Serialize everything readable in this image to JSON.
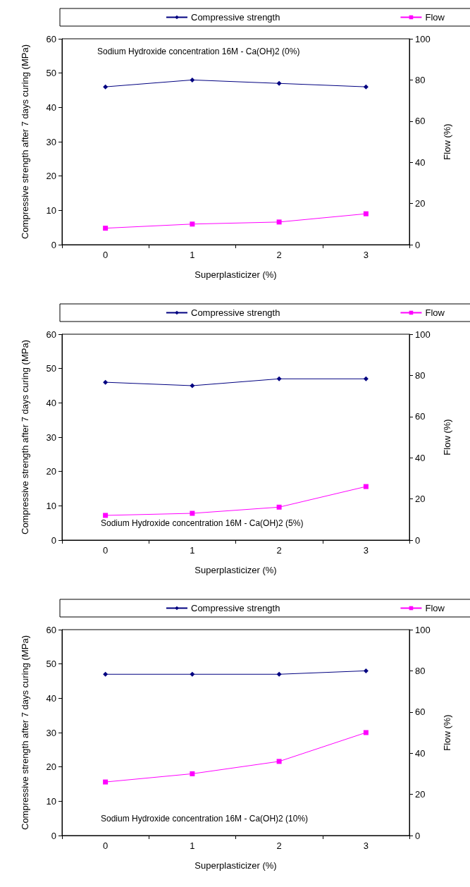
{
  "chart_data": [
    {
      "type": "line",
      "categories": [
        "0",
        "1",
        "2",
        "3"
      ],
      "xlabel": "Superplasticizer (%)",
      "ylabel": "Compressive strength after 7 days curing (MPa)",
      "y2label": "Flow (%)",
      "ylim": [
        0,
        60
      ],
      "yticks": [
        0,
        10,
        20,
        30,
        40,
        50,
        60
      ],
      "y2lim": [
        0,
        100
      ],
      "y2ticks": [
        0,
        20,
        40,
        60,
        80,
        100
      ],
      "legend": "top",
      "grid": false,
      "annotations": [
        "Sodium Hydroxide concentration 16M - Ca(OH)2 (0%)"
      ],
      "series": [
        {
          "name": "Compressive strength",
          "color": "#000080",
          "marker": "diamond",
          "values": [
            46,
            48,
            47,
            46
          ]
        },
        {
          "name": "Flow",
          "color": "#ff00ff",
          "marker": "square",
          "axis": "y2",
          "values": [
            8,
            10,
            11,
            15
          ]
        }
      ]
    },
    {
      "type": "line",
      "categories": [
        "0",
        "1",
        "2",
        "3"
      ],
      "xlabel": "Superplasticizer (%)",
      "ylabel": "Compressive strength after 7 days curing (MPa)",
      "y2label": "Flow (%)",
      "ylim": [
        0,
        60
      ],
      "yticks": [
        0,
        10,
        20,
        30,
        40,
        50,
        60
      ],
      "y2lim": [
        0,
        100
      ],
      "y2ticks": [
        0,
        20,
        40,
        60,
        80,
        100
      ],
      "legend": "top",
      "grid": false,
      "annotations": [
        "Sodium Hydroxide concentration 16M - Ca(OH)2 (5%)"
      ],
      "series": [
        {
          "name": "Compressive strength",
          "color": "#000080",
          "marker": "diamond",
          "values": [
            46,
            45,
            47,
            47
          ]
        },
        {
          "name": "Flow",
          "color": "#ff00ff",
          "marker": "square",
          "axis": "y2",
          "values": [
            12,
            13,
            16,
            26
          ]
        }
      ]
    },
    {
      "type": "line",
      "categories": [
        "0",
        "1",
        "2",
        "3"
      ],
      "xlabel": "Superplasticizer (%)",
      "ylabel": "Compressive strength after 7 days curing (MPa)",
      "y2label": "Flow (%)",
      "ylim": [
        0,
        60
      ],
      "yticks": [
        0,
        10,
        20,
        30,
        40,
        50,
        60
      ],
      "y2lim": [
        0,
        100
      ],
      "y2ticks": [
        0,
        20,
        40,
        60,
        80,
        100
      ],
      "legend": "top",
      "grid": false,
      "annotations": [
        "Sodium Hydroxide concentration 16M - Ca(OH)2 (10%)"
      ],
      "series": [
        {
          "name": "Compressive strength",
          "color": "#000080",
          "marker": "diamond",
          "values": [
            47,
            47,
            47,
            48
          ]
        },
        {
          "name": "Flow",
          "color": "#ff00ff",
          "marker": "square",
          "axis": "y2",
          "values": [
            26,
            30,
            36,
            50
          ]
        }
      ]
    }
  ]
}
